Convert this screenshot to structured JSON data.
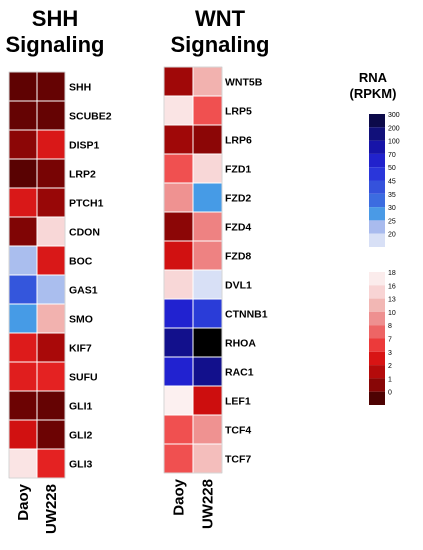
{
  "chart_data": [
    {
      "type": "heatmap",
      "title": "SHH Signaling",
      "title_lines": [
        "SHH",
        "Signaling"
      ],
      "columns": [
        "Daoy",
        "UW228"
      ],
      "rows": [
        {
          "gene": "SHH",
          "values": [
            0.6,
            0.7
          ]
        },
        {
          "gene": "SCUBE2",
          "values": [
            0.7,
            0.7
          ]
        },
        {
          "gene": "DISP1",
          "values": [
            1.5,
            4.5
          ]
        },
        {
          "gene": "LRP2",
          "values": [
            0.5,
            1.0
          ]
        },
        {
          "gene": "PTCH1",
          "values": [
            4.5,
            1.8
          ]
        },
        {
          "gene": "CDON",
          "values": [
            1.2,
            16.0
          ]
        },
        {
          "gene": "BOC",
          "values": [
            25,
            4.5
          ]
        },
        {
          "gene": "GAS1",
          "values": [
            50,
            25
          ]
        },
        {
          "gene": "SMO",
          "values": [
            35,
            13
          ]
        },
        {
          "gene": "KIF7",
          "values": [
            5.0,
            2.2
          ]
        },
        {
          "gene": "SUFU",
          "values": [
            5.5,
            6.0
          ]
        },
        {
          "gene": "GLI1",
          "values": [
            0.8,
            0.7
          ]
        },
        {
          "gene": "GLI2",
          "values": [
            3.5,
            0.8
          ]
        },
        {
          "gene": "GLI3",
          "values": [
            17,
            6.0
          ]
        }
      ]
    },
    {
      "type": "heatmap",
      "title": "WNT Signaling",
      "title_lines": [
        "WNT",
        "Signaling"
      ],
      "columns": [
        "Daoy",
        "UW228"
      ],
      "rows": [
        {
          "gene": "WNT5B",
          "values": [
            2.0,
            13
          ]
        },
        {
          "gene": "LRP5",
          "values": [
            17,
            8.0
          ]
        },
        {
          "gene": "LRP6",
          "values": [
            2.0,
            1.5
          ]
        },
        {
          "gene": "FZD1",
          "values": [
            8.0,
            16
          ]
        },
        {
          "gene": "FZD2",
          "values": [
            11,
            35
          ]
        },
        {
          "gene": "FZD4",
          "values": [
            1.5,
            10
          ]
        },
        {
          "gene": "FZD8",
          "values": [
            3.5,
            10
          ]
        },
        {
          "gene": "DVL1",
          "values": [
            16,
            20
          ]
        },
        {
          "gene": "CTNNB1",
          "values": [
            100,
            70
          ]
        },
        {
          "gene": "RHOA",
          "values": [
            200,
            400
          ]
        },
        {
          "gene": "RAC1",
          "values": [
            100,
            200
          ]
        },
        {
          "gene": "LEF1",
          "values": [
            18,
            3.0
          ]
        },
        {
          "gene": "TCF4",
          "values": [
            8.0,
            11
          ]
        },
        {
          "gene": "TCF7",
          "values": [
            8.0,
            14
          ]
        }
      ]
    }
  ],
  "legend": {
    "title_lines": [
      "RNA",
      "(RPKM)"
    ],
    "blue_ticks": [
      "300",
      "200",
      "100",
      "70",
      "50",
      "45",
      "35",
      "30",
      "25",
      "20"
    ],
    "red_ticks": [
      "18",
      "16",
      "13",
      "10",
      "8",
      "7",
      "3",
      "2",
      "1",
      "0"
    ],
    "blue_colors": [
      "#0c0a4a",
      "#11107a",
      "#1714a8",
      "#2122cc",
      "#2a36da",
      "#3552dc",
      "#3c6ce0",
      "#4a9ae6",
      "#a9bbee",
      "#d8e0f6"
    ],
    "red_colors": [
      "#fbecec",
      "#f8d4d4",
      "#f2b7b4",
      "#ee9090",
      "#ed6565",
      "#ec3a3a",
      "#d81414",
      "#b40b0b",
      "#880606",
      "#4e0303"
    ]
  }
}
